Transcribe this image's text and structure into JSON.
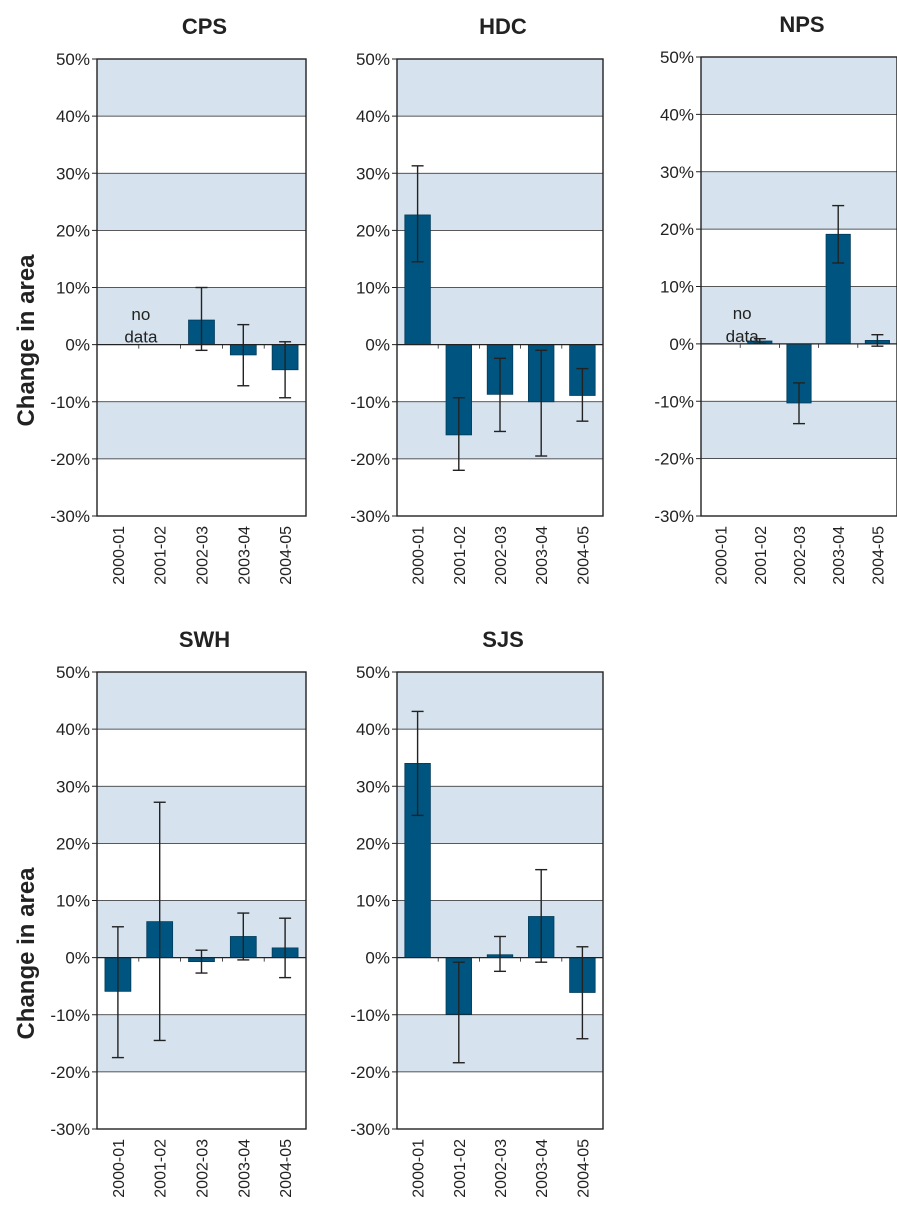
{
  "colors": {
    "bar": "#005580",
    "band": "#d6e3ee",
    "frame": "#222222",
    "error": "#222222"
  },
  "chart_data": [
    {
      "type": "bar",
      "title": "CPS",
      "ylabel": "Change in area",
      "categories": [
        "2000-01",
        "2001-02",
        "2002-03",
        "2003-04",
        "2004-05"
      ],
      "yticks": [
        "50%",
        "40%",
        "30%",
        "20%",
        "10%",
        "0%",
        "-10%",
        "-20%",
        "-30%"
      ],
      "ylim": [
        -30,
        50
      ],
      "values": [
        null,
        null,
        4.3,
        -1.8,
        -4.4
      ],
      "error_low": [
        null,
        null,
        -1.0,
        -7.2,
        -9.3
      ],
      "error_high": [
        null,
        null,
        10.0,
        3.5,
        0.5
      ],
      "annotation": {
        "line1": "no",
        "line2": "data",
        "category": "2000-01"
      }
    },
    {
      "type": "bar",
      "title": "HDC",
      "ylabel": "",
      "categories": [
        "2000-01",
        "2001-02",
        "2002-03",
        "2003-04",
        "2004-05"
      ],
      "yticks": [
        "50%",
        "40%",
        "30%",
        "20%",
        "10%",
        "0%",
        "-10%",
        "-20%",
        "-30%"
      ],
      "ylim": [
        -30,
        50
      ],
      "values": [
        22.7,
        -15.8,
        -8.7,
        -10.0,
        -8.9
      ],
      "error_low": [
        14.5,
        -22.0,
        -15.2,
        -19.5,
        -13.4
      ],
      "error_high": [
        31.3,
        -9.3,
        -2.4,
        -1.0,
        -4.2
      ]
    },
    {
      "type": "bar",
      "title": "NPS",
      "ylabel": "",
      "categories": [
        "2000-01",
        "2001-02",
        "2002-03",
        "2003-04",
        "2004-05"
      ],
      "yticks": [
        "50%",
        "40%",
        "30%",
        "20%",
        "10%",
        "0%",
        "-10%",
        "-20%",
        "-30%"
      ],
      "ylim": [
        -30,
        50
      ],
      "values": [
        null,
        0.5,
        -10.3,
        19.1,
        0.6
      ],
      "error_low": [
        null,
        0.1,
        -13.9,
        14.1,
        -0.4
      ],
      "error_high": [
        null,
        0.9,
        -6.8,
        24.1,
        1.6
      ],
      "annotation": {
        "line1": "no",
        "line2": "data",
        "category": "2000-01"
      }
    },
    {
      "type": "bar",
      "title": "SWH",
      "ylabel": "Change in area",
      "categories": [
        "2000-01",
        "2001-02",
        "2002-03",
        "2003-04",
        "2004-05"
      ],
      "yticks": [
        "50%",
        "40%",
        "30%",
        "20%",
        "10%",
        "0%",
        "-10%",
        "-20%",
        "-30%"
      ],
      "ylim": [
        -30,
        50
      ],
      "values": [
        -5.9,
        6.3,
        -0.7,
        3.7,
        1.7
      ],
      "error_low": [
        -17.5,
        -14.5,
        -2.7,
        -0.4,
        -3.5
      ],
      "error_high": [
        5.4,
        27.2,
        1.3,
        7.8,
        6.9
      ]
    },
    {
      "type": "bar",
      "title": "SJS",
      "ylabel": "",
      "categories": [
        "2000-01",
        "2001-02",
        "2002-03",
        "2003-04",
        "2004-05"
      ],
      "yticks": [
        "50%",
        "40%",
        "30%",
        "20%",
        "10%",
        "0%",
        "-10%",
        "-20%",
        "-30%"
      ],
      "ylim": [
        -30,
        50
      ],
      "values": [
        34.0,
        -9.9,
        0.5,
        7.2,
        -6.1
      ],
      "error_low": [
        24.9,
        -18.4,
        -2.4,
        -0.8,
        -14.2
      ],
      "error_high": [
        43.1,
        -0.8,
        3.7,
        15.4,
        1.9
      ]
    }
  ]
}
